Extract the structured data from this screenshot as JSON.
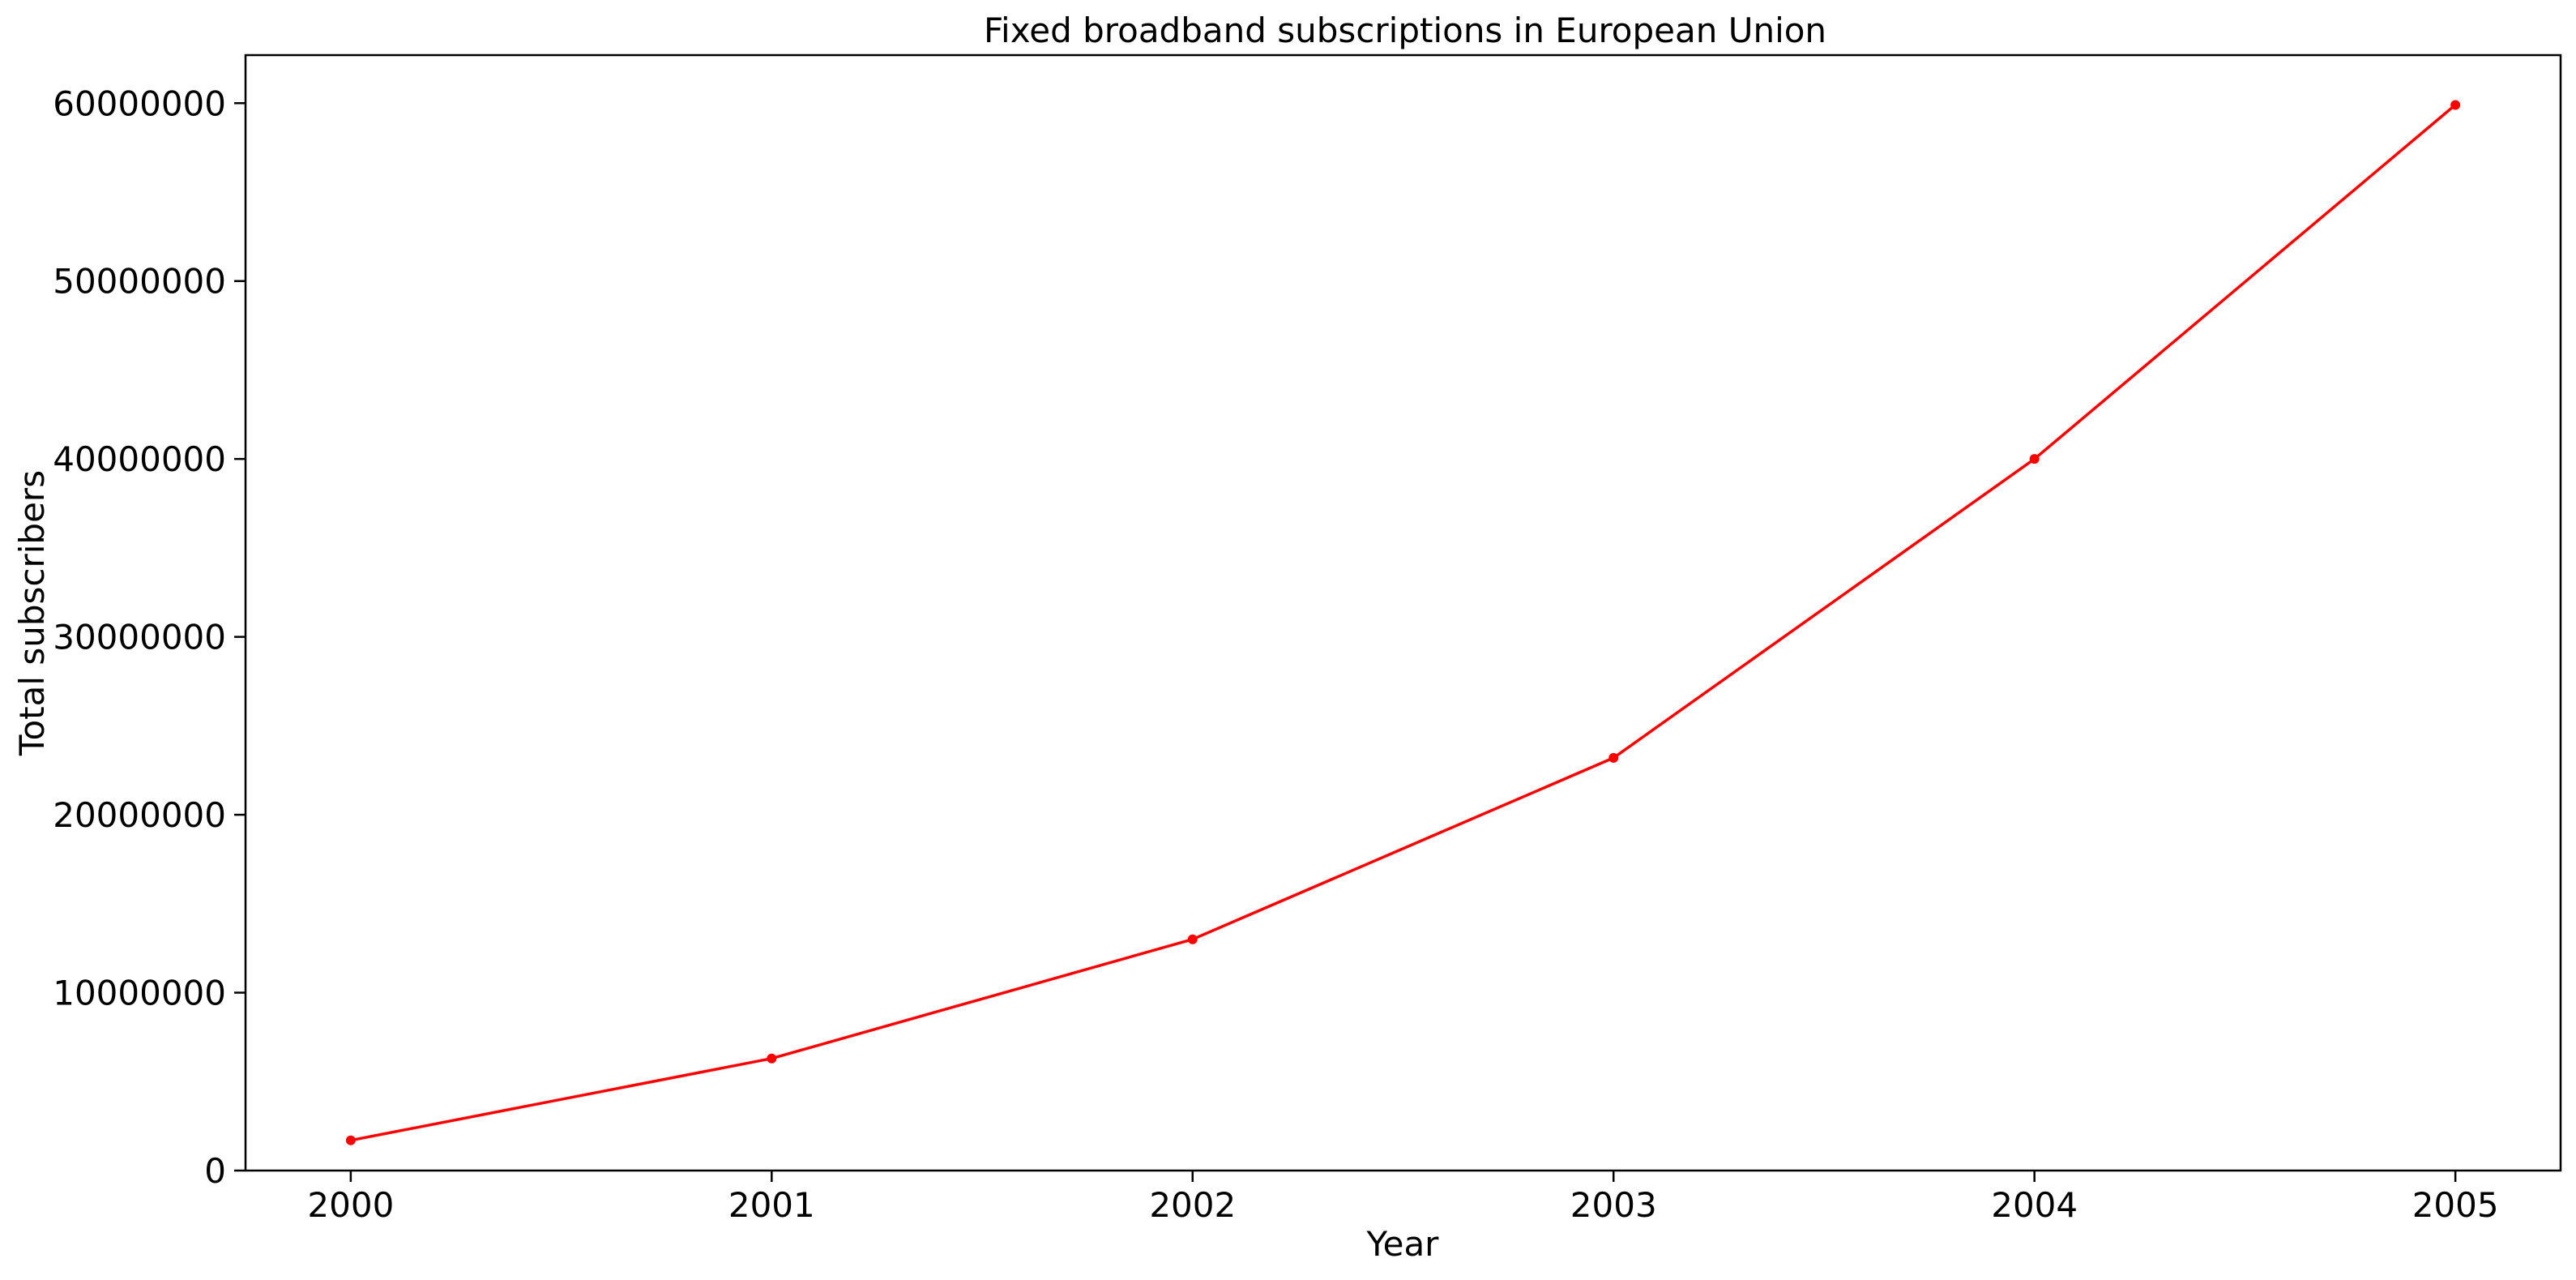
{
  "chart_data": {
    "type": "line",
    "title": "Fixed broadband subscriptions in European Union",
    "xlabel": "Year",
    "ylabel": "Total subscribers",
    "x": [
      2000,
      2001,
      2002,
      2003,
      2004,
      2005
    ],
    "x_tick_labels": [
      "2000",
      "2001",
      "2002",
      "2003",
      "2004",
      "2005"
    ],
    "xlim": [
      1999.75,
      2005.25
    ],
    "ylim": [
      0,
      62700000
    ],
    "y_ticks": [
      0,
      10000000,
      20000000,
      30000000,
      40000000,
      50000000,
      60000000
    ],
    "y_tick_labels": [
      "0",
      "10000000",
      "20000000",
      "30000000",
      "40000000",
      "50000000",
      "60000000"
    ],
    "grid": false,
    "series": [
      {
        "values": [
          1700000,
          6300000,
          13000000,
          23200000,
          40000000,
          59900000
        ],
        "color": "#ff0000",
        "marker": "circle"
      }
    ]
  }
}
